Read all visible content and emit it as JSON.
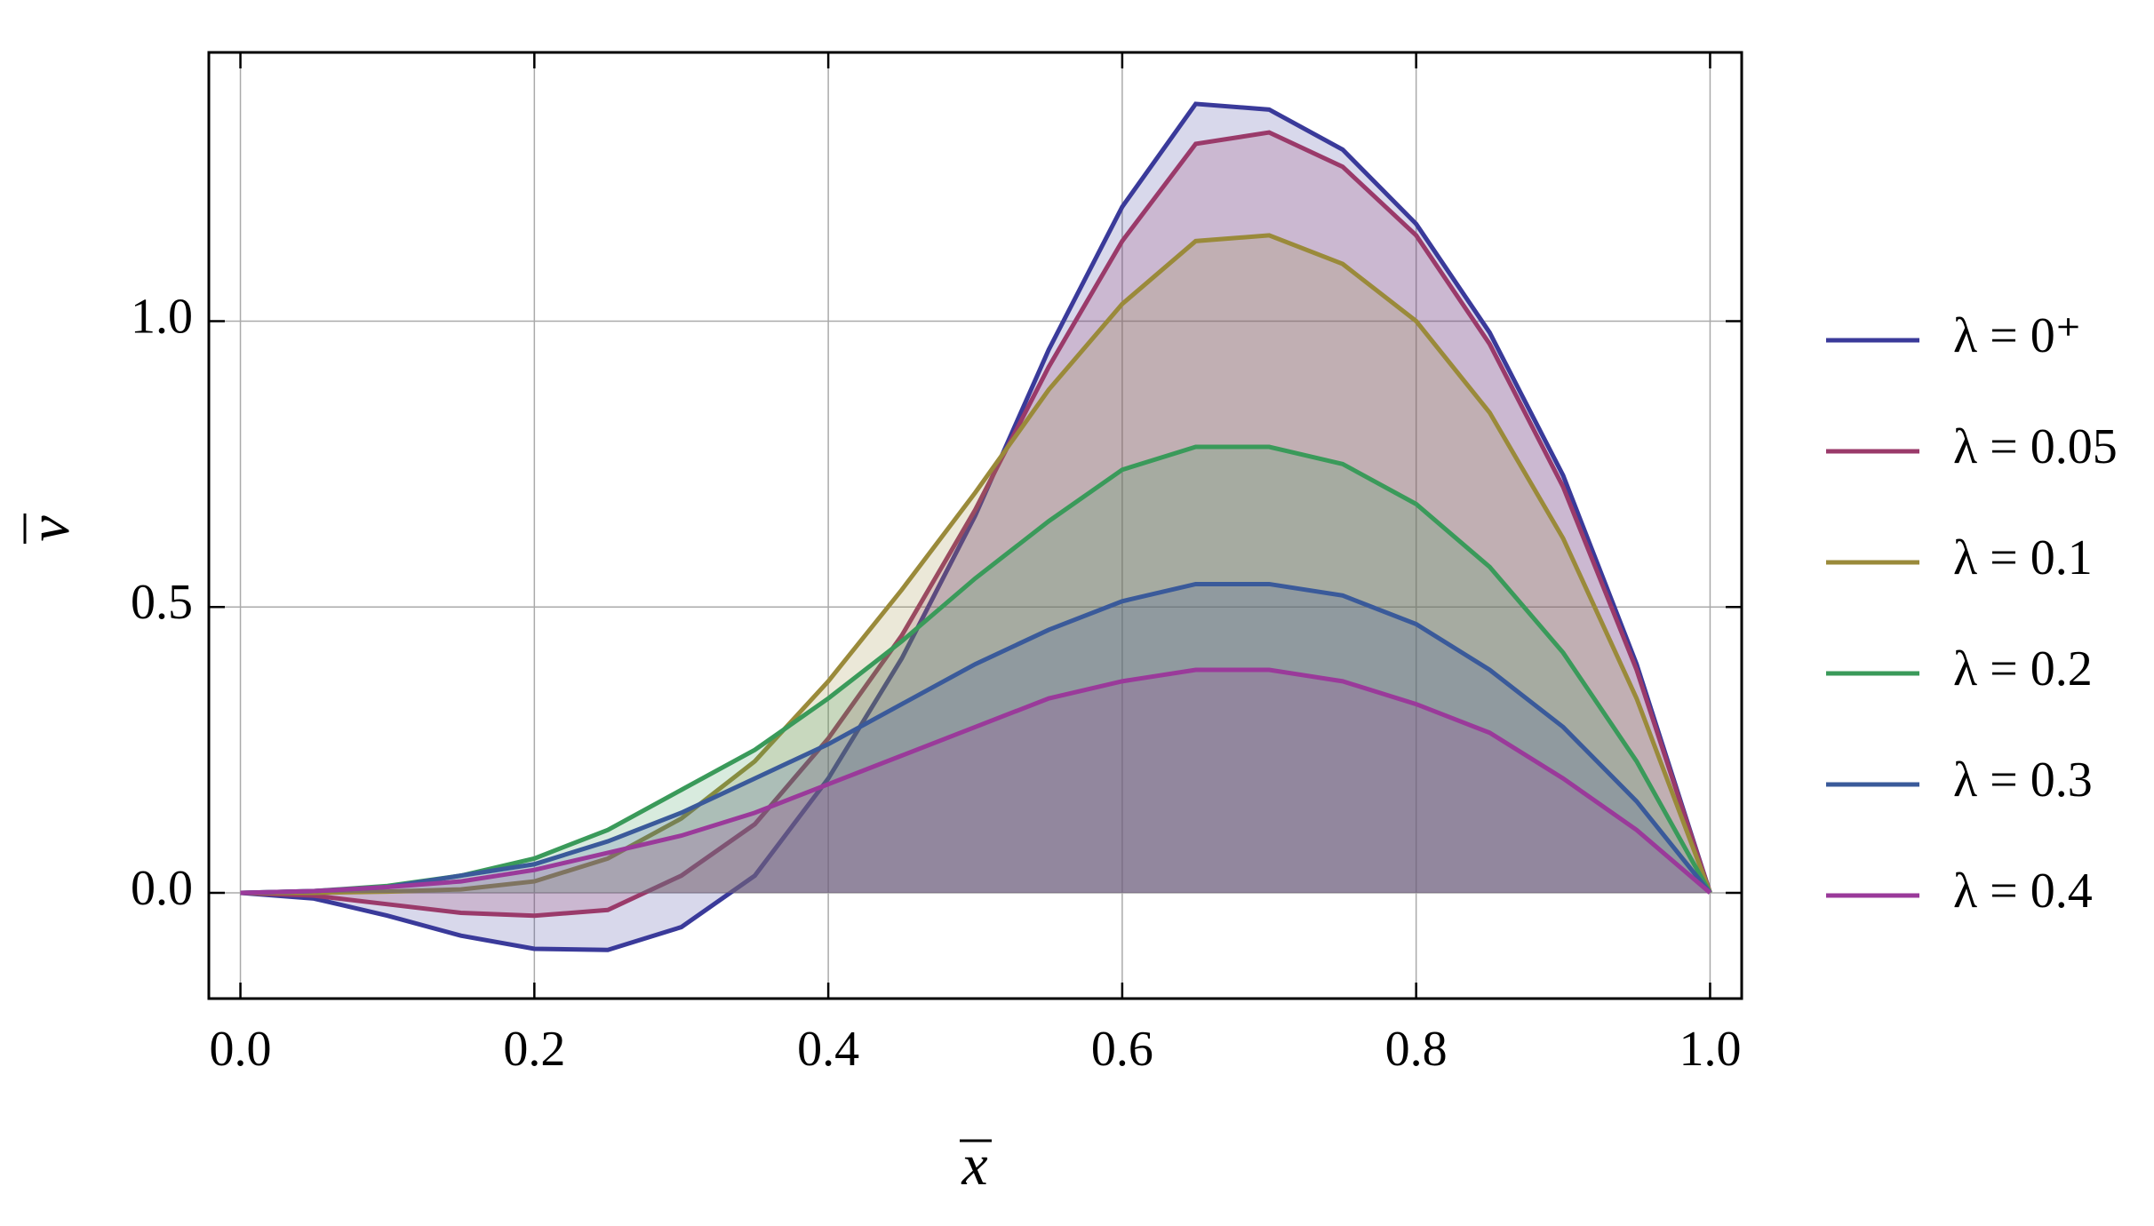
{
  "chart_data": {
    "type": "line",
    "x_label": "x",
    "y_label": "v",
    "x": [
      0,
      0.05,
      0.1,
      0.15,
      0.2,
      0.25,
      0.3,
      0.35,
      0.4,
      0.45,
      0.5,
      0.55,
      0.6,
      0.65,
      0.7,
      0.75,
      0.8,
      0.85,
      0.9,
      0.95,
      1
    ],
    "series": [
      {
        "name": "λ = 0⁺",
        "color": "#3a3a9a",
        "values": [
          0,
          -0.01,
          -0.04,
          -0.075,
          -0.098,
          -0.1,
          -0.06,
          0.03,
          0.2,
          0.41,
          0.66,
          0.95,
          1.2,
          1.38,
          1.37,
          1.3,
          1.17,
          0.98,
          0.73,
          0.4,
          0
        ]
      },
      {
        "name": "λ = 0.05",
        "color": "#9a3a6a",
        "values": [
          0,
          -0.005,
          -0.02,
          -0.035,
          -0.04,
          -0.03,
          0.03,
          0.12,
          0.27,
          0.45,
          0.67,
          0.92,
          1.14,
          1.31,
          1.33,
          1.27,
          1.15,
          0.96,
          0.71,
          0.39,
          0
        ]
      },
      {
        "name": "λ = 0.1",
        "color": "#9a8a3a",
        "values": [
          0,
          0,
          0.002,
          0.006,
          0.02,
          0.06,
          0.13,
          0.23,
          0.37,
          0.53,
          0.7,
          0.88,
          1.03,
          1.14,
          1.15,
          1.1,
          1.0,
          0.84,
          0.62,
          0.34,
          0
        ]
      },
      {
        "name": "λ = 0.2",
        "color": "#3a9a5a",
        "values": [
          0,
          0.003,
          0.012,
          0.03,
          0.06,
          0.11,
          0.18,
          0.25,
          0.34,
          0.44,
          0.55,
          0.65,
          0.74,
          0.78,
          0.78,
          0.75,
          0.68,
          0.57,
          0.42,
          0.23,
          0
        ]
      },
      {
        "name": "λ = 0.3",
        "color": "#3a5a9a",
        "values": [
          0,
          0.003,
          0.01,
          0.03,
          0.05,
          0.09,
          0.14,
          0.2,
          0.26,
          0.33,
          0.4,
          0.46,
          0.51,
          0.54,
          0.54,
          0.52,
          0.47,
          0.39,
          0.29,
          0.16,
          0
        ]
      },
      {
        "name": "λ = 0.4",
        "color": "#9a3a9a",
        "values": [
          0,
          0.003,
          0.01,
          0.02,
          0.04,
          0.07,
          0.1,
          0.14,
          0.19,
          0.24,
          0.29,
          0.34,
          0.37,
          0.39,
          0.39,
          0.37,
          0.33,
          0.28,
          0.2,
          0.11,
          0
        ]
      }
    ],
    "xlim": [
      -0.0215,
      1.0215
    ],
    "ylim": [
      -0.185,
      1.47
    ],
    "xticks": [
      {
        "value": 0,
        "label": "0.0"
      },
      0.2,
      0.4,
      0.6,
      0.8,
      {
        "value": 1,
        "label": "1.0"
      }
    ],
    "yticks": [
      {
        "value": 0,
        "label": "0.0"
      },
      0.5,
      {
        "value": 1,
        "label": "1.0"
      }
    ],
    "grid": true,
    "legend": "right",
    "fill_to_zero": true
  }
}
